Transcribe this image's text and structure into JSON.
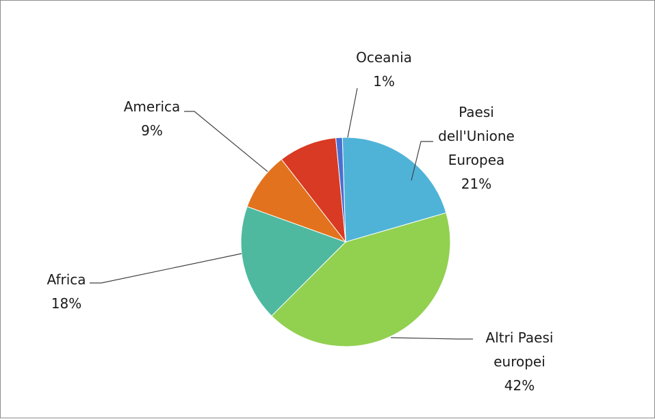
{
  "chart_data": {
    "type": "pie",
    "title": "",
    "start_angle_deg": -91.8,
    "slices": [
      {
        "label_lines": [
          "Paesi",
          "dell'Unione",
          "Europea"
        ],
        "value": 21,
        "value_label": "21%",
        "color": "#4fb3d8"
      },
      {
        "label_lines": [
          "Altri Paesi",
          "europei"
        ],
        "value": 42,
        "value_label": "42%",
        "color": "#92d050"
      },
      {
        "label_lines": [
          "Africa"
        ],
        "value": 18,
        "value_label": "18%",
        "color": "#4fb99f"
      },
      {
        "label_lines": [
          "America"
        ],
        "value": 9,
        "value_label": "9%",
        "color": "#e2721d"
      },
      {
        "label_lines": [
          "Oceania"
        ],
        "value": 1,
        "value_label": "1%",
        "color": "#4a6fd1"
      }
    ],
    "residual_slice": {
      "value": 9,
      "color": "#d83a23"
    },
    "legend": "none",
    "data_labels": "category and percentage"
  }
}
